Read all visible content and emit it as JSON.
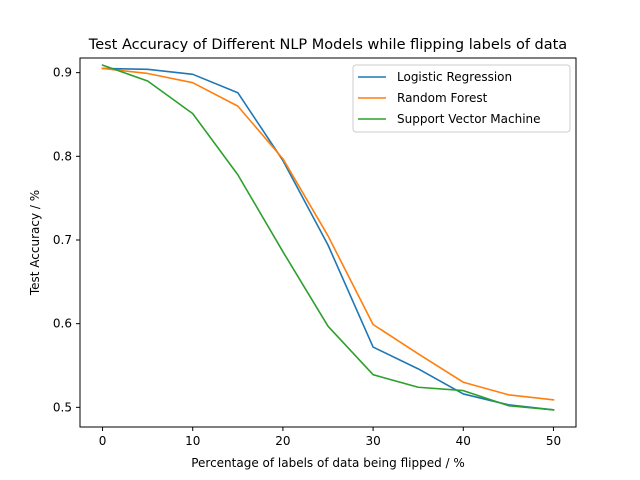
{
  "chart_data": {
    "type": "line",
    "title": "Test Accuracy of Different NLP Models while flipping labels of data",
    "xlabel": "Percentage of labels of data being flipped / %",
    "ylabel": "Test Accuracy / %",
    "xlim": [
      -2.5,
      52.5
    ],
    "ylim": [
      0.4765,
      0.9175
    ],
    "xticks": [
      "0",
      "10",
      "20",
      "30",
      "40",
      "50"
    ],
    "yticks": [
      "0.5",
      "0.6",
      "0.7",
      "0.8",
      "0.9"
    ],
    "grid": false,
    "legend_position": "upper right",
    "x": [
      0,
      5,
      10,
      15,
      20,
      25,
      30,
      35,
      40,
      45,
      50
    ],
    "series": [
      {
        "name": "Logistic Regression",
        "color": "#1f77b4",
        "values": [
          0.905,
          0.904,
          0.898,
          0.876,
          0.795,
          0.694,
          0.572,
          0.546,
          0.516,
          0.503,
          0.497
        ]
      },
      {
        "name": "Random Forest",
        "color": "#ff7f0e",
        "values": [
          0.905,
          0.899,
          0.888,
          0.86,
          0.797,
          0.705,
          0.599,
          0.564,
          0.53,
          0.515,
          0.509
        ]
      },
      {
        "name": "Support Vector Machine",
        "color": "#2ca02c",
        "values": [
          0.909,
          0.89,
          0.851,
          0.778,
          0.686,
          0.597,
          0.539,
          0.524,
          0.52,
          0.502,
          0.497
        ]
      }
    ]
  }
}
